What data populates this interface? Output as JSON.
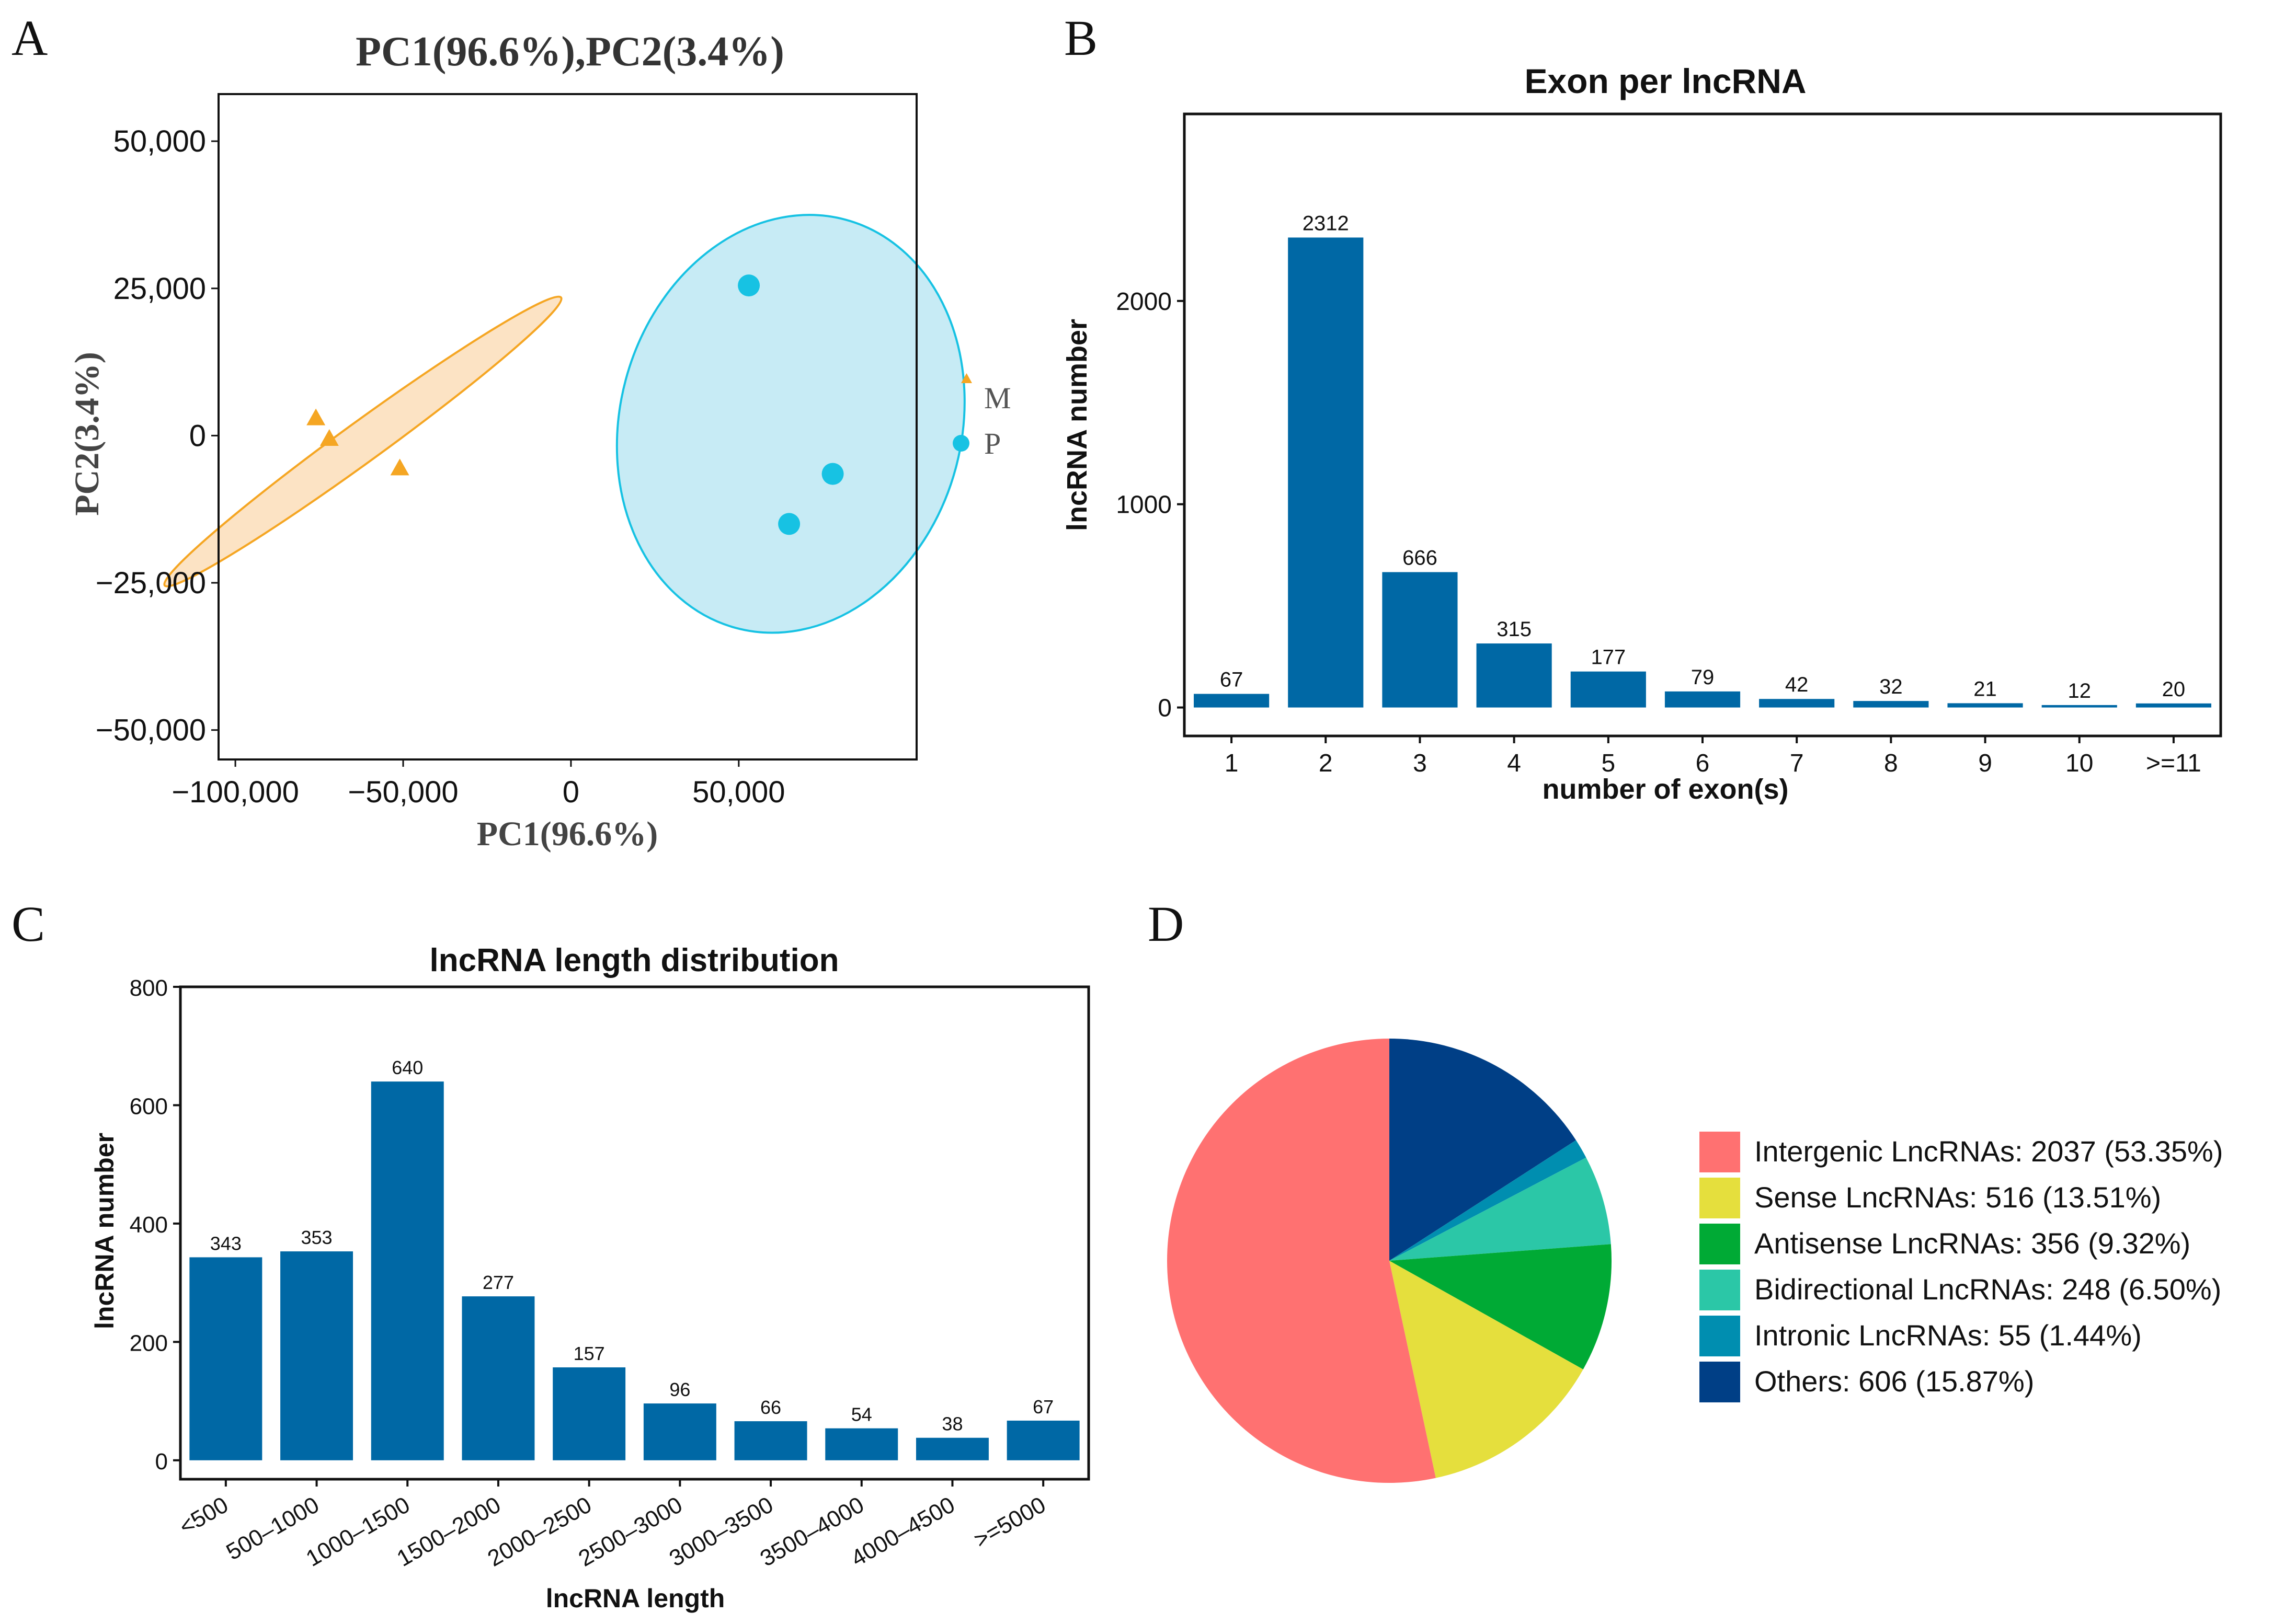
{
  "panels": {
    "a": "A",
    "b": "B",
    "c": "C",
    "d": "D"
  },
  "chart_data": [
    {
      "type": "scatter",
      "title": "PC1(96.6%),PC2(3.4%)",
      "xlabel": "PC1(96.6%)",
      "ylabel": "PC2(3.4%)",
      "xlim": [
        -105000,
        103000
      ],
      "ylim": [
        -55000,
        58000
      ],
      "xticks": [
        -100000,
        -50000,
        0,
        50000
      ],
      "xtick_labels": [
        "−100,000",
        "−50,000",
        "0",
        "50,000"
      ],
      "yticks": [
        50000,
        25000,
        0,
        -25000,
        -50000
      ],
      "ytick_labels": [
        "50,000",
        "25,000",
        "0",
        "−25,000",
        "−50,000"
      ],
      "series": [
        {
          "name": "M",
          "marker": "triangle",
          "color": "#F5A623",
          "fill": "#FCE3C4",
          "points": [
            [
              -76000,
              3000
            ],
            [
              -72000,
              -500
            ],
            [
              -51000,
              -5500
            ]
          ],
          "ellipse": {
            "cx": -62000,
            "cy": -1000,
            "rx": 73000,
            "ry": 3400,
            "angle_deg": -36
          }
        },
        {
          "name": "P",
          "marker": "circle",
          "color": "#17C2E3",
          "fill": "#C7EBF5",
          "points": [
            [
              53000,
              25500
            ],
            [
              65000,
              -15000
            ],
            [
              78000,
              -6500
            ]
          ],
          "ellipse": {
            "cx": 65500,
            "cy": 2000,
            "rx": 63000,
            "ry": 29000,
            "angle_deg": -75
          }
        }
      ],
      "legend": [
        "M",
        "P"
      ]
    },
    {
      "type": "bar",
      "title": "Exon per lncRNA",
      "xlabel": "number of exon(s)",
      "ylabel": "lncRNA number",
      "categories": [
        "1",
        "2",
        "3",
        "4",
        "5",
        "6",
        "7",
        "8",
        "9",
        "10",
        ">=11"
      ],
      "values": [
        67,
        2312,
        666,
        315,
        177,
        79,
        42,
        32,
        21,
        12,
        20
      ],
      "ylim": [
        -140,
        2920
      ],
      "yticks": [
        0,
        1000,
        2000
      ],
      "color": "#0068A5"
    },
    {
      "type": "bar",
      "title": "lncRNA length distribution",
      "xlabel": "lncRNA length",
      "ylabel": "lncRNA number",
      "categories": [
        "<500",
        "500–1000",
        "1000–1500",
        "1500–2000",
        "2000–2500",
        "2500–3000",
        "3000–3500",
        "3500–4000",
        "4000–4500",
        ">=5000"
      ],
      "values": [
        343,
        353,
        640,
        277,
        157,
        96,
        66,
        54,
        38,
        67
      ],
      "ylim": [
        -32,
        800
      ],
      "yticks": [
        0,
        200,
        400,
        600,
        800
      ],
      "color": "#0068A5"
    },
    {
      "type": "pie",
      "slices": [
        {
          "label": "Others: 606 (15.87%)",
          "value": 606,
          "color": "#003F86"
        },
        {
          "label": "Intronic LncRNAs: 55 (1.44%)",
          "value": 55,
          "color": "#008EB0"
        },
        {
          "label": "Bidirectional LncRNAs: 248 (6.50%)",
          "value": 248,
          "color": "#2BC7A7"
        },
        {
          "label": "Antisense LncRNAs: 356 (9.32%)",
          "value": 356,
          "color": "#00AA35"
        },
        {
          "label": "Sense LncRNAs: 516 (13.51%)",
          "value": 516,
          "color": "#E5DF3D"
        },
        {
          "label": "Intergenic LncRNAs: 2037 (53.35%)",
          "value": 2037,
          "color": "#FF7171"
        }
      ],
      "legend_order": [
        5,
        4,
        3,
        2,
        1,
        0
      ]
    }
  ]
}
